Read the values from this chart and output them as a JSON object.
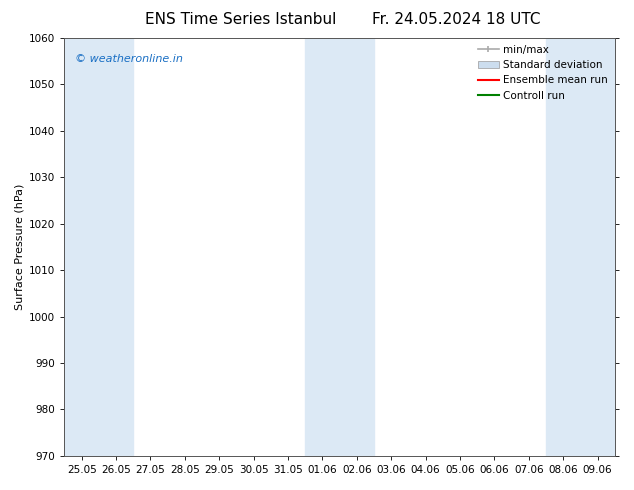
{
  "title_left": "ENS Time Series Istanbul",
  "title_right": "Fr. 24.05.2024 18 UTC",
  "ylabel": "Surface Pressure (hPa)",
  "ylim": [
    970,
    1060
  ],
  "yticks": [
    970,
    980,
    990,
    1000,
    1010,
    1020,
    1030,
    1040,
    1050,
    1060
  ],
  "x_tick_labels": [
    "25.05",
    "26.05",
    "27.05",
    "28.05",
    "29.05",
    "30.05",
    "31.05",
    "01.06",
    "02.06",
    "03.06",
    "04.06",
    "05.06",
    "06.06",
    "07.06",
    "08.06",
    "09.06"
  ],
  "shaded_bands_idx": [
    0,
    1,
    7,
    8,
    14,
    15
  ],
  "band_color": "#dce9f5",
  "watermark_text": "© weatheronline.in",
  "watermark_color": "#1a6fc4",
  "legend_items": [
    {
      "label": "min/max",
      "color": "#aaaaaa",
      "type": "errorbar"
    },
    {
      "label": "Standard deviation",
      "color": "#ccddee",
      "type": "fill"
    },
    {
      "label": "Ensemble mean run",
      "color": "#ff0000",
      "type": "line"
    },
    {
      "label": "Controll run",
      "color": "#008000",
      "type": "line"
    }
  ],
  "bg_color": "#ffffff",
  "plot_bg_color": "#ffffff",
  "font_color": "#000000",
  "title_fontsize": 11,
  "axis_fontsize": 8,
  "tick_fontsize": 7.5,
  "legend_fontsize": 7.5
}
